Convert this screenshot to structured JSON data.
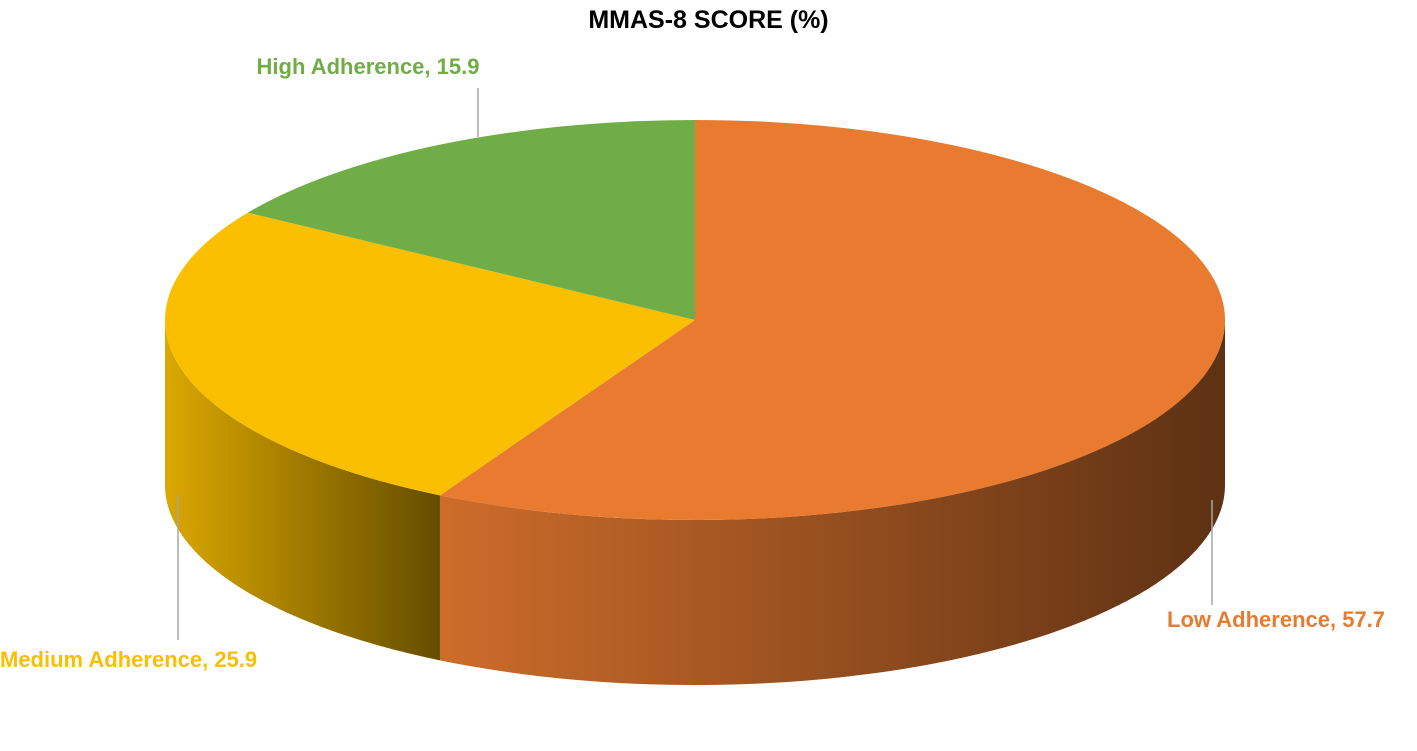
{
  "chart_data": {
    "type": "pie",
    "title": "MMAS-8 SCORE (%)",
    "values": [
      57.7,
      25.9,
      15.9
    ],
    "value_labels": [
      "Low Adherence, 57.7",
      "Medium Adherence, 25.9",
      "High Adherence, 15.9"
    ],
    "colors": [
      "#e97b30",
      "#f9bf00",
      "#70ad47"
    ]
  }
}
